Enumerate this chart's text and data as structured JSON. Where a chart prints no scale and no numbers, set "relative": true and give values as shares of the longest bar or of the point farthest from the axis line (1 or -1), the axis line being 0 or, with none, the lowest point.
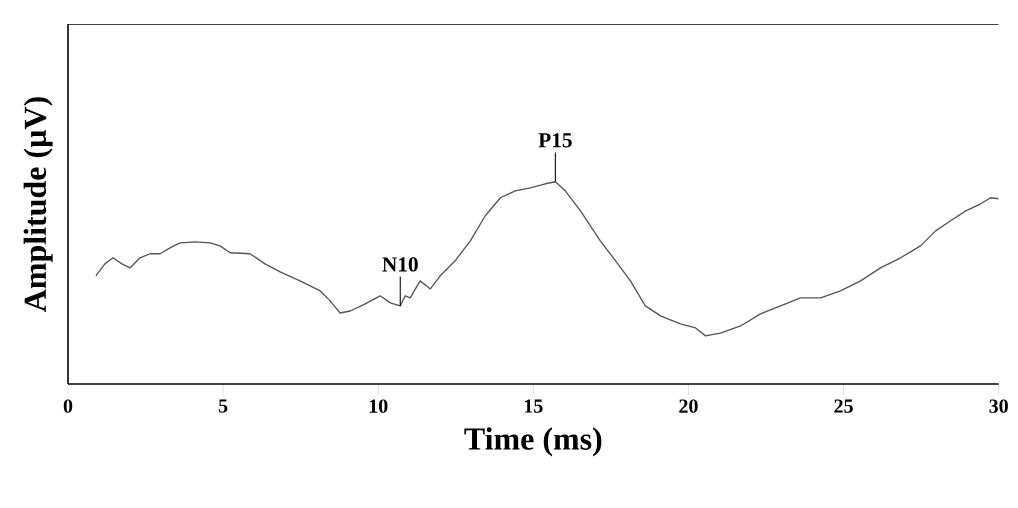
{
  "chart_data": {
    "type": "line",
    "relative": true,
    "xlabel": "Time (ms)",
    "ylabel": "Amplitude (µV)",
    "xlim": [
      0,
      30
    ],
    "xticks": [
      0,
      5,
      10,
      15,
      20,
      25,
      30
    ],
    "color": "#555555",
    "x": [
      0.9,
      1.19,
      1.45,
      1.74,
      2.0,
      2.32,
      2.65,
      2.97,
      3.29,
      3.61,
      4.1,
      4.58,
      4.9,
      5.23,
      5.87,
      6.35,
      6.84,
      7.48,
      8.13,
      8.45,
      8.77,
      9.1,
      9.58,
      10.06,
      10.39,
      10.71,
      10.87,
      11.03,
      11.35,
      11.68,
      12.0,
      12.48,
      12.97,
      13.45,
      13.94,
      14.42,
      14.9,
      15.39,
      15.71,
      16.03,
      16.52,
      17.16,
      17.65,
      18.13,
      18.61,
      19.1,
      19.74,
      20.23,
      20.55,
      21.03,
      21.68,
      22.32,
      22.97,
      23.61,
      24.26,
      24.9,
      25.55,
      26.19,
      26.84,
      27.48,
      27.97,
      28.45,
      28.94,
      29.42,
      29.74,
      30.0
    ],
    "values": [
      0.535,
      0.594,
      0.624,
      0.594,
      0.574,
      0.624,
      0.644,
      0.644,
      0.673,
      0.698,
      0.703,
      0.698,
      0.683,
      0.649,
      0.644,
      0.594,
      0.554,
      0.51,
      0.46,
      0.411,
      0.351,
      0.361,
      0.396,
      0.436,
      0.401,
      0.386,
      0.436,
      0.426,
      0.51,
      0.47,
      0.535,
      0.609,
      0.708,
      0.832,
      0.921,
      0.955,
      0.97,
      0.99,
      1,
      0.955,
      0.856,
      0.708,
      0.609,
      0.51,
      0.386,
      0.337,
      0.297,
      0.277,
      0.238,
      0.252,
      0.287,
      0.347,
      0.386,
      0.426,
      0.426,
      0.46,
      0.51,
      0.574,
      0.624,
      0.683,
      0.757,
      0.807,
      0.856,
      0.891,
      0.921,
      0.916
    ],
    "annotations": [
      {
        "text": "N10",
        "x": 10.71,
        "y": 0.386
      },
      {
        "text": "P15",
        "x": 15.71,
        "y": 1
      }
    ]
  }
}
